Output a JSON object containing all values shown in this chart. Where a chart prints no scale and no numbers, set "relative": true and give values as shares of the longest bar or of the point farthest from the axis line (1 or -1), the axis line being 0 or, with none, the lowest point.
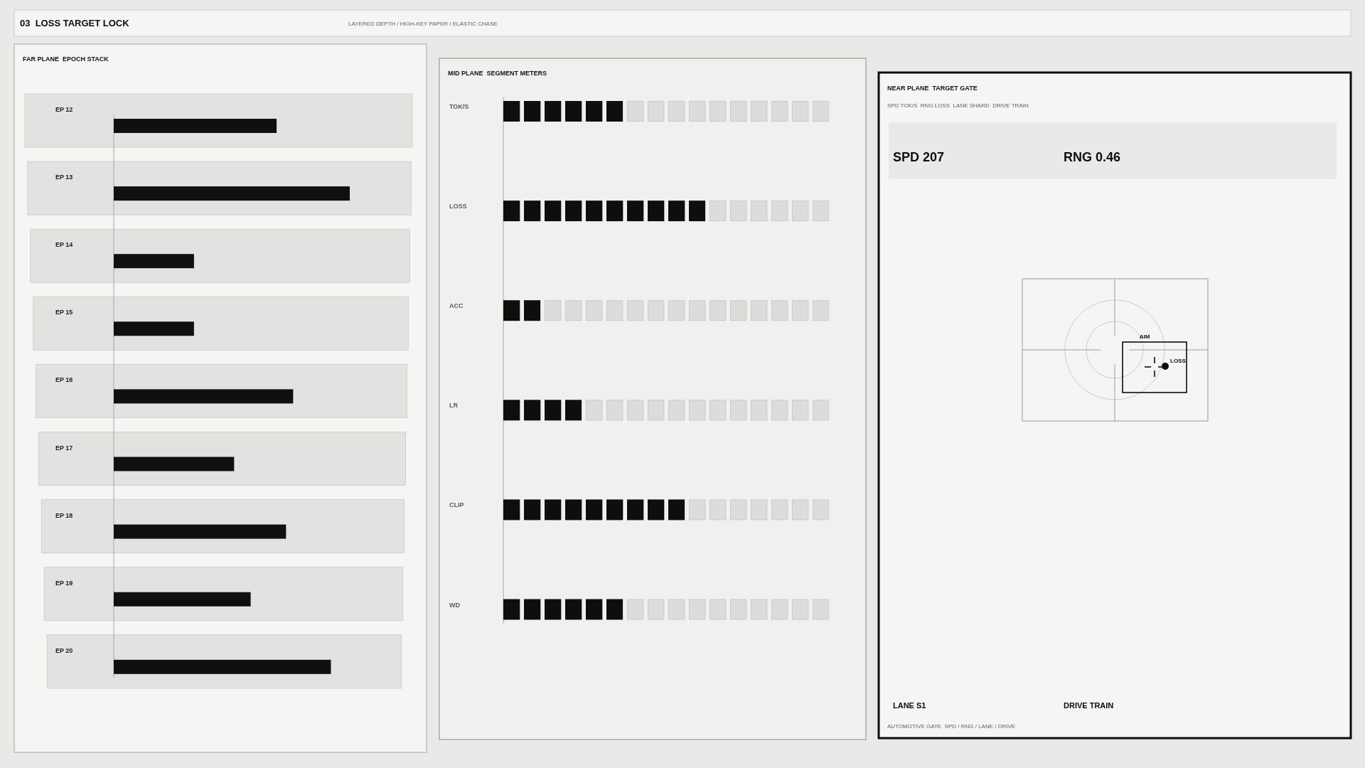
{
  "chart_data": [
    {
      "type": "other",
      "title": "03  LOSS TARGET LOCK",
      "subtitle": "LAYERED DEPTH / HIGH-KEY PAPER / ELASTIC CHASE"
    },
    {
      "type": "bar",
      "title": "FAR PLANE  EPOCH STACK",
      "orientation": "horizontal",
      "relative": true,
      "categories": [
        "EP 12",
        "EP 13",
        "EP 14",
        "EP 15",
        "EP 16",
        "EP 17",
        "EP 18",
        "EP 19",
        "EP 20"
      ],
      "values": [
        0.69,
        1,
        0.34,
        0.34,
        0.76,
        0.51,
        0.73,
        0.58,
        0.92
      ],
      "color": "#0f110f"
    },
    {
      "type": "bar",
      "title": "MID PLANE  SEGMENT METERS",
      "orientation": "horizontal",
      "relative": true,
      "categories": [
        "TOK/S",
        "LOSS",
        "ACC",
        "LR",
        "CLIP",
        "WD"
      ],
      "values": [
        0.592,
        1,
        0.184,
        0.388,
        0.898,
        0.592
      ],
      "color": "#0d0f0d"
    },
    {
      "type": "other",
      "title": "NEAR PLANE  TARGET GATE",
      "subtitle": "SPD TOK/S  RNG LOSS  LANE SHARD  DRIVE TRAIN",
      "annotations": [
        "SPD 207",
        "RNG 0.46",
        "AIM",
        "LOSS",
        "LANE S1",
        "DRIVE TRAIN",
        "AUTOMOTIVE GATE  SPD / RNG / LANE / DRIVE"
      ]
    }
  ]
}
